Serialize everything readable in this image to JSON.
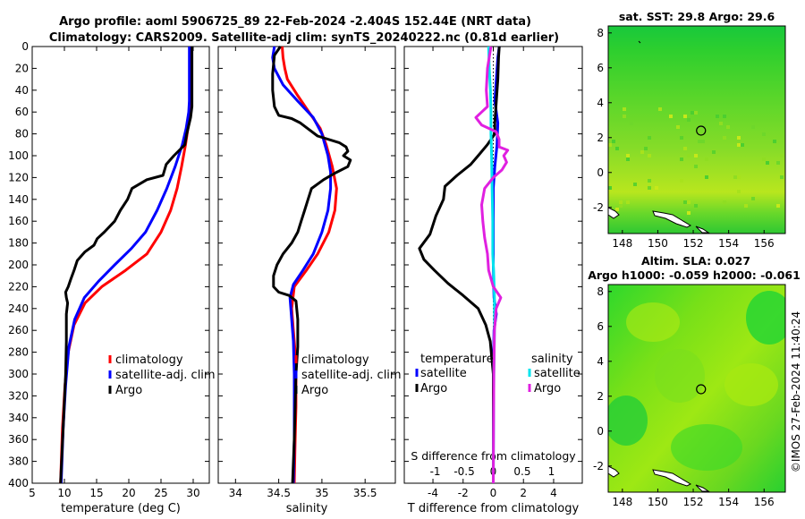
{
  "title": {
    "line1": "Argo profile: aoml 5906725_89 22-Feb-2024 -2.404S 152.44E (NRT data)",
    "line2": "Climatology: CARS2009. Satellite-adj clim: synTS_20240222.nc (0.81d earlier)"
  },
  "copyright": "©IMOS 27-Feb-2024 11:40:24",
  "colors": {
    "climatology": "#ff0000",
    "satellite": "#0000ff",
    "argo": "#000000",
    "sal_satellite": "#00e5ee",
    "sal_argo": "#e020e0",
    "zero_line": "#000000"
  },
  "chart_data": [
    {
      "type": "line",
      "name": "temperature",
      "xlabel": "temperature (deg C)",
      "ylabel": "",
      "xlim": [
        5,
        32.5
      ],
      "ylim": [
        0,
        400
      ],
      "xticks": [
        5,
        10,
        15,
        20,
        25,
        30
      ],
      "yticks": [
        0,
        20,
        40,
        60,
        80,
        100,
        120,
        140,
        160,
        180,
        200,
        220,
        240,
        260,
        280,
        300,
        320,
        340,
        360,
        380,
        400
      ],
      "legend": [
        "climatology",
        "satellite-adj. clim",
        "Argo"
      ],
      "series": [
        {
          "name": "climatology",
          "color": "#ff0000",
          "points": [
            [
              29.7,
              0
            ],
            [
              29.7,
              50
            ],
            [
              29.6,
              60
            ],
            [
              29.3,
              70
            ],
            [
              28.8,
              90
            ],
            [
              28.2,
              110
            ],
            [
              27.5,
              130
            ],
            [
              26.5,
              150
            ],
            [
              25.0,
              170
            ],
            [
              22.8,
              190
            ],
            [
              19.5,
              205
            ],
            [
              15.8,
              220
            ],
            [
              13.2,
              235
            ],
            [
              11.5,
              255
            ],
            [
              10.6,
              280
            ],
            [
              10.1,
              310
            ],
            [
              9.7,
              350
            ],
            [
              9.4,
              400
            ]
          ]
        },
        {
          "name": "satellite-adj. clim",
          "color": "#0000ff",
          "points": [
            [
              29.4,
              0
            ],
            [
              29.4,
              50
            ],
            [
              29.3,
              60
            ],
            [
              28.9,
              75
            ],
            [
              28.3,
              90
            ],
            [
              27.2,
              110
            ],
            [
              25.9,
              130
            ],
            [
              24.4,
              150
            ],
            [
              22.6,
              170
            ],
            [
              20.4,
              185
            ],
            [
              17.8,
              200
            ],
            [
              15.3,
              215
            ],
            [
              13.1,
              230
            ],
            [
              11.6,
              250
            ],
            [
              10.7,
              275
            ],
            [
              10.2,
              310
            ],
            [
              9.8,
              350
            ],
            [
              9.5,
              400
            ]
          ]
        },
        {
          "name": "Argo",
          "color": "#000000",
          "points": [
            [
              29.8,
              0
            ],
            [
              29.8,
              55
            ],
            [
              29.6,
              65
            ],
            [
              29.0,
              80
            ],
            [
              28.7,
              90
            ],
            [
              27.0,
              100
            ],
            [
              25.8,
              108
            ],
            [
              25.3,
              118
            ],
            [
              22.8,
              122
            ],
            [
              20.5,
              130
            ],
            [
              19.8,
              140
            ],
            [
              18.7,
              150
            ],
            [
              17.8,
              160
            ],
            [
              16.2,
              170
            ],
            [
              15.1,
              176
            ],
            [
              14.6,
              182
            ],
            [
              13.2,
              188
            ],
            [
              12.0,
              196
            ],
            [
              11.5,
              205
            ],
            [
              11.0,
              213
            ],
            [
              10.6,
              220
            ],
            [
              10.2,
              225
            ],
            [
              10.3,
              230
            ],
            [
              10.5,
              235
            ],
            [
              10.3,
              245
            ],
            [
              10.3,
              270
            ],
            [
              10.2,
              300
            ],
            [
              9.8,
              350
            ],
            [
              9.4,
              400
            ]
          ]
        }
      ]
    },
    {
      "type": "line",
      "name": "salinity",
      "xlabel": "salinity",
      "xlim": [
        33.8,
        35.85
      ],
      "ylim": [
        0,
        400
      ],
      "xticks": [
        34,
        34.5,
        35,
        35.5
      ],
      "legend": [
        "climatology",
        "satellite-adj. clim",
        "Argo"
      ],
      "series": [
        {
          "name": "climatology",
          "color": "#ff0000",
          "points": [
            [
              34.54,
              0
            ],
            [
              34.55,
              10
            ],
            [
              34.57,
              20
            ],
            [
              34.6,
              30
            ],
            [
              34.72,
              45
            ],
            [
              34.85,
              60
            ],
            [
              34.98,
              75
            ],
            [
              35.05,
              90
            ],
            [
              35.12,
              110
            ],
            [
              35.17,
              130
            ],
            [
              35.15,
              150
            ],
            [
              35.08,
              170
            ],
            [
              34.95,
              190
            ],
            [
              34.82,
              205
            ],
            [
              34.68,
              220
            ],
            [
              34.65,
              240
            ],
            [
              34.67,
              260
            ],
            [
              34.69,
              280
            ],
            [
              34.7,
              300
            ],
            [
              34.7,
              330
            ],
            [
              34.69,
              360
            ],
            [
              34.68,
              400
            ]
          ]
        },
        {
          "name": "satellite-adj. clim",
          "color": "#0000ff",
          "points": [
            [
              34.45,
              0
            ],
            [
              34.43,
              10
            ],
            [
              34.45,
              20
            ],
            [
              34.55,
              35
            ],
            [
              34.72,
              50
            ],
            [
              34.9,
              65
            ],
            [
              35.0,
              80
            ],
            [
              35.07,
              100
            ],
            [
              35.1,
              115
            ],
            [
              35.1,
              130
            ],
            [
              35.07,
              150
            ],
            [
              35.0,
              170
            ],
            [
              34.9,
              190
            ],
            [
              34.78,
              205
            ],
            [
              34.67,
              218
            ],
            [
              34.63,
              230
            ],
            [
              34.65,
              250
            ],
            [
              34.67,
              270
            ],
            [
              34.68,
              300
            ],
            [
              34.68,
              330
            ],
            [
              34.68,
              360
            ],
            [
              34.67,
              400
            ]
          ]
        },
        {
          "name": "Argo",
          "color": "#000000",
          "points": [
            [
              34.52,
              0
            ],
            [
              34.45,
              8
            ],
            [
              34.43,
              25
            ],
            [
              34.43,
              40
            ],
            [
              34.45,
              55
            ],
            [
              34.5,
              63
            ],
            [
              34.65,
              66
            ],
            [
              34.75,
              70
            ],
            [
              34.85,
              76
            ],
            [
              34.95,
              82
            ],
            [
              35.2,
              88
            ],
            [
              35.28,
              92
            ],
            [
              35.3,
              96
            ],
            [
              35.25,
              100
            ],
            [
              35.33,
              104
            ],
            [
              35.3,
              110
            ],
            [
              35.15,
              116
            ],
            [
              35.02,
              122
            ],
            [
              34.88,
              130
            ],
            [
              34.84,
              140
            ],
            [
              34.8,
              150
            ],
            [
              34.76,
              160
            ],
            [
              34.72,
              170
            ],
            [
              34.65,
              180
            ],
            [
              34.55,
              190
            ],
            [
              34.48,
              200
            ],
            [
              34.44,
              210
            ],
            [
              34.44,
              220
            ],
            [
              34.5,
              225
            ],
            [
              34.62,
              228
            ],
            [
              34.7,
              233
            ],
            [
              34.72,
              250
            ],
            [
              34.72,
              275
            ],
            [
              34.7,
              300
            ],
            [
              34.69,
              330
            ],
            [
              34.68,
              360
            ],
            [
              34.66,
              400
            ]
          ]
        }
      ]
    },
    {
      "type": "line",
      "name": "differences",
      "xlabel": "T difference from climatology",
      "xlabel_top": "S difference from climatology",
      "xlim": [
        -5.9,
        5.9
      ],
      "ylim": [
        0,
        400
      ],
      "xticks": [
        -4,
        -2,
        0,
        2,
        4
      ],
      "xticks_top": [
        -1,
        -0.5,
        0,
        0.5,
        1
      ],
      "legend_left_title": "temperature",
      "legend_left": [
        "satellite",
        "Argo"
      ],
      "legend_right_title": "salinity",
      "legend_right": [
        "satellite",
        "Argo"
      ],
      "series": [
        {
          "name": "temperature satellite",
          "color": "#0000ff",
          "points": [
            [
              0.4,
              0
            ],
            [
              0.3,
              10
            ],
            [
              0.2,
              30
            ],
            [
              0.1,
              50
            ],
            [
              0.3,
              70
            ],
            [
              0.25,
              90
            ],
            [
              0.1,
              110
            ],
            [
              0.0,
              130
            ],
            [
              0.0,
              200
            ],
            [
              0.05,
              230
            ],
            [
              0.2,
              245
            ],
            [
              0.05,
              260
            ],
            [
              0.0,
              300
            ],
            [
              0.0,
              400
            ]
          ]
        },
        {
          "name": "temperature Argo",
          "color": "#000000",
          "points": [
            [
              0.4,
              0
            ],
            [
              0.35,
              10
            ],
            [
              0.3,
              30
            ],
            [
              0.2,
              50
            ],
            [
              0.1,
              70
            ],
            [
              0.1,
              80
            ],
            [
              -0.4,
              90
            ],
            [
              -1.0,
              100
            ],
            [
              -1.5,
              108
            ],
            [
              -2.4,
              118
            ],
            [
              -3.2,
              128
            ],
            [
              -3.3,
              140
            ],
            [
              -3.8,
              155
            ],
            [
              -4.2,
              172
            ],
            [
              -4.9,
              185
            ],
            [
              -4.6,
              195
            ],
            [
              -3.9,
              205
            ],
            [
              -3.0,
              217
            ],
            [
              -2.0,
              228
            ],
            [
              -1.0,
              240
            ],
            [
              -0.5,
              255
            ],
            [
              -0.2,
              270
            ],
            [
              -0.1,
              285
            ],
            [
              0.0,
              300
            ],
            [
              0.0,
              400
            ]
          ]
        },
        {
          "name": "salinity satellite",
          "color": "#00e5ee",
          "points": [
            [
              -0.08,
              0
            ],
            [
              -0.07,
              20
            ],
            [
              -0.05,
              40
            ],
            [
              -0.04,
              60
            ],
            [
              -0.04,
              80
            ],
            [
              -0.03,
              100
            ],
            [
              -0.02,
              130
            ],
            [
              -0.01,
              160
            ],
            [
              -0.01,
              190
            ],
            [
              0.01,
              210
            ],
            [
              0.02,
              230
            ],
            [
              0.02,
              260
            ],
            [
              0.01,
              300
            ],
            [
              0.0,
              400
            ]
          ]
        },
        {
          "name": "salinity Argo",
          "color": "#e020e0",
          "points": [
            [
              -0.04,
              0
            ],
            [
              -0.1,
              20
            ],
            [
              -0.12,
              40
            ],
            [
              -0.1,
              55
            ],
            [
              -0.2,
              60
            ],
            [
              -0.3,
              65
            ],
            [
              -0.2,
              72
            ],
            [
              0.05,
              78
            ],
            [
              0.1,
              85
            ],
            [
              0.1,
              92
            ],
            [
              0.25,
              95
            ],
            [
              0.18,
              100
            ],
            [
              0.23,
              106
            ],
            [
              0.15,
              113
            ],
            [
              0.0,
              120
            ],
            [
              -0.15,
              130
            ],
            [
              -0.2,
              145
            ],
            [
              -0.18,
              160
            ],
            [
              -0.15,
              175
            ],
            [
              -0.1,
              190
            ],
            [
              -0.08,
              205
            ],
            [
              0.0,
              220
            ],
            [
              0.13,
              230
            ],
            [
              0.05,
              240
            ],
            [
              0.02,
              260
            ],
            [
              0.01,
              300
            ],
            [
              0.0,
              400
            ]
          ]
        }
      ]
    },
    {
      "type": "heatmap",
      "name": "sst_map",
      "title": "sat. SST: 29.8 Argo: 29.6",
      "xlim": [
        147.2,
        157.2
      ],
      "ylim": [
        -3.5,
        8.4
      ],
      "xticks": [
        148,
        150,
        152,
        154,
        156
      ],
      "yticks": [
        -2,
        0,
        2,
        4,
        6,
        8
      ],
      "marker": [
        152.44,
        2.4
      ]
    },
    {
      "type": "heatmap",
      "name": "sla_map",
      "title": "Altim. SLA: 0.027",
      "subtitle": "Argo h1000: -0.059 h2000: -0.061",
      "xlim": [
        147.2,
        157.2
      ],
      "ylim": [
        -3.5,
        8.4
      ],
      "xticks": [
        148,
        150,
        152,
        154,
        156
      ],
      "yticks": [
        -2,
        0,
        2,
        4,
        6,
        8
      ],
      "marker": [
        152.44,
        2.4
      ]
    }
  ]
}
